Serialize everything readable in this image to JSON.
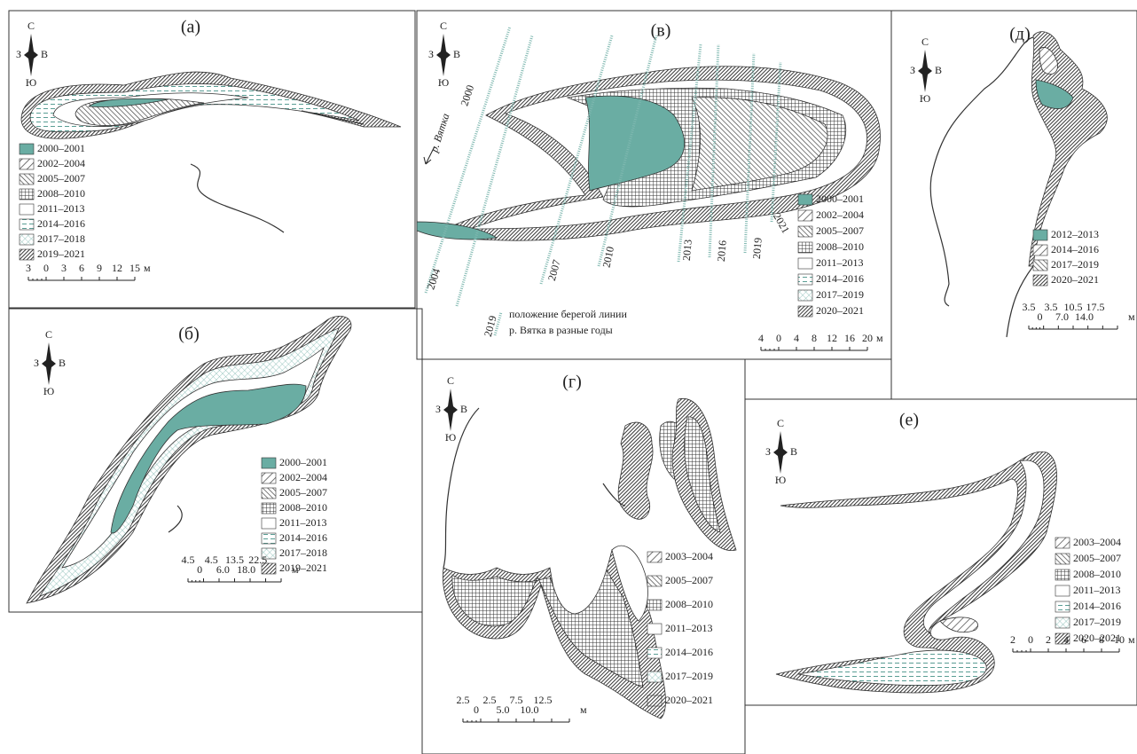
{
  "panels": [
    {
      "label": "(а)",
      "compass": {
        "n": "С",
        "w": "З",
        "e": "В",
        "s": "Ю"
      },
      "legend": [
        "2000–2001",
        "2002–2004",
        "2005–2007",
        "2008–2010",
        "2011–2013",
        "2014–2016",
        "2017–2018",
        "2019–2021"
      ],
      "scale": {
        "rows": [
          [
            "3",
            "0",
            "3",
            "6",
            "9",
            "12",
            "15"
          ]
        ],
        "unit": "м"
      }
    },
    {
      "label": "(б)",
      "compass": {
        "n": "С",
        "w": "З",
        "e": "В",
        "s": "Ю"
      },
      "legend": [
        "2000–2001",
        "2002–2004",
        "2005–2007",
        "2008–2010",
        "2011–2013",
        "2014–2016",
        "2017–2018",
        "2019–2021"
      ],
      "scale": {
        "rows": [
          [
            "4.5",
            "4.5",
            "13.5",
            "22.5"
          ],
          [
            "0",
            "6.0",
            "18.0"
          ]
        ],
        "unit": "м"
      }
    },
    {
      "label": "(в)",
      "compass": {
        "n": "С",
        "w": "З",
        "e": "В",
        "s": "Ю"
      },
      "legend": [
        "2000–2001",
        "2002–2004",
        "2005–2007",
        "2008–2010",
        "2011–2013",
        "2014–2016",
        "2017–2019",
        "2020–2021"
      ],
      "scale": {
        "rows": [
          [
            "4",
            "0",
            "4",
            "8",
            "12",
            "16",
            "20"
          ]
        ],
        "unit": "м"
      },
      "years": [
        "2000",
        "2004",
        "2007",
        "2010",
        "2013",
        "2016",
        "2019",
        "2021"
      ],
      "river": "р. Вятка",
      "note": [
        "положение берегой линии",
        "р. Вятка в разные годы"
      ],
      "note_sample": "2019"
    },
    {
      "label": "(д)",
      "compass": {
        "n": "С",
        "w": "З",
        "e": "В",
        "s": "Ю"
      },
      "legend": [
        "2012–2013",
        "2014–2016",
        "2017–2019",
        "2020–2021"
      ],
      "scale": {
        "rows": [
          [
            "3.5",
            "3.5",
            "10.5",
            "17.5"
          ],
          [
            "0",
            "7.0",
            "14.0"
          ]
        ],
        "unit": "м"
      }
    },
    {
      "label": "(г)",
      "compass": {
        "n": "С",
        "w": "З",
        "e": "В",
        "s": "Ю"
      },
      "legend": [
        "2003–2004",
        "2005–2007",
        "2008–2010",
        "2011–2013",
        "2014–2016",
        "2017–2019",
        "2020–2021"
      ],
      "scale": {
        "rows": [
          [
            "2.5",
            "2.5",
            "7.5",
            "12.5"
          ],
          [
            "0",
            "5.0",
            "10.0"
          ]
        ],
        "unit": "м"
      }
    },
    {
      "label": "(е)",
      "compass": {
        "n": "С",
        "w": "З",
        "e": "В",
        "s": "Ю"
      },
      "legend": [
        "2003–2004",
        "2005–2007",
        "2008–2010",
        "2011–2013",
        "2014–2016",
        "2017–2019",
        "2020–2021"
      ],
      "scale": {
        "rows": [
          [
            "2",
            "0",
            "2",
            "4",
            "6",
            "8",
            "10"
          ]
        ],
        "unit": "м"
      }
    }
  ]
}
